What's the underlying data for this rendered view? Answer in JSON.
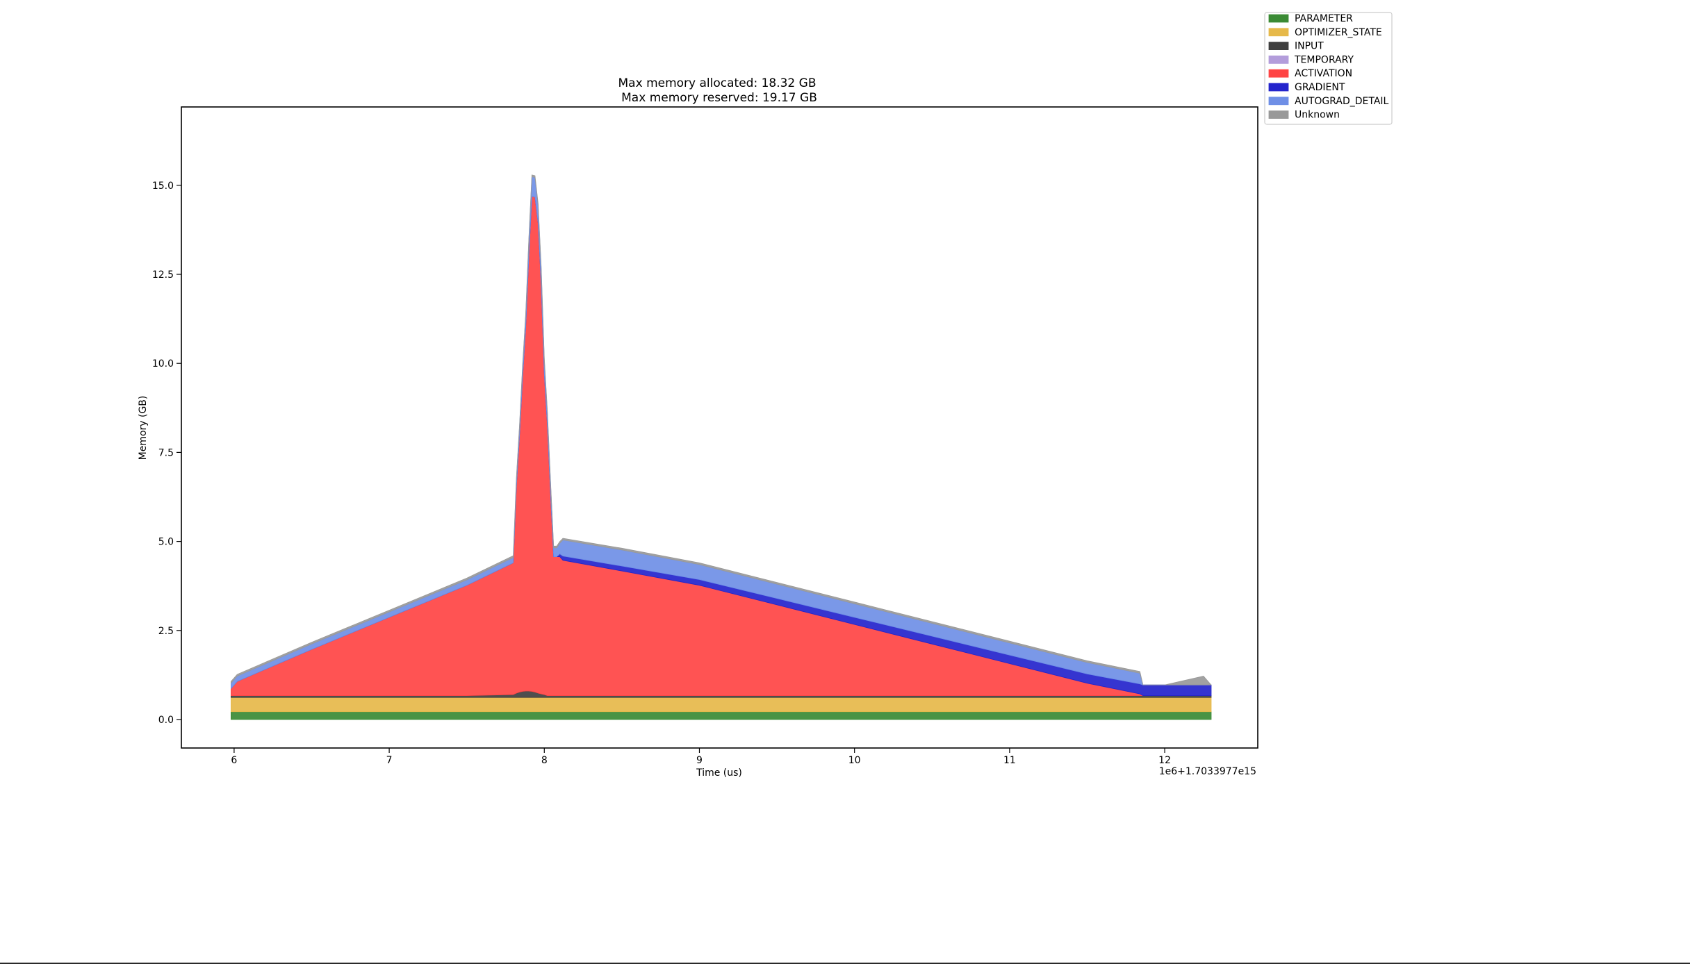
{
  "chart_data": {
    "type": "area",
    "stacked": true,
    "title_lines": [
      "Max memory allocated: 18.32 GB",
      "Max memory reserved: 19.17 GB"
    ],
    "xlabel": "Time (us)",
    "ylabel": "Memory (GB)",
    "x_offset_label": "1e6+1.7033977e15",
    "xlim": [
      5.66,
      12.6
    ],
    "ylim": [
      -0.8,
      17.2
    ],
    "xticks": [
      6,
      7,
      8,
      9,
      10,
      11,
      12
    ],
    "xtick_labels": [
      "6",
      "7",
      "8",
      "9",
      "10",
      "11",
      "12"
    ],
    "yticks": [
      0.0,
      2.5,
      5.0,
      7.5,
      10.0,
      12.5,
      15.0
    ],
    "ytick_labels": [
      "0.0",
      "2.5",
      "5.0",
      "7.5",
      "10.0",
      "12.5",
      "15.0"
    ],
    "grid": false,
    "legend_position": "outside top-right",
    "x": [
      5.98,
      6.02,
      6.5,
      7.0,
      7.5,
      7.8,
      7.82,
      7.84,
      7.86,
      7.88,
      7.9,
      7.92,
      7.94,
      7.96,
      7.98,
      8.0,
      8.02,
      8.04,
      8.06,
      8.08,
      8.1,
      8.12,
      8.5,
      9.0,
      9.5,
      10.0,
      10.5,
      11.0,
      11.5,
      11.84,
      11.86,
      12.0,
      12.2,
      12.25,
      12.3
    ],
    "series": [
      {
        "name": "PARAMETER",
        "color": "#3a8a34",
        "values": [
          0.22,
          0.22,
          0.22,
          0.22,
          0.22,
          0.22,
          0.22,
          0.22,
          0.22,
          0.22,
          0.22,
          0.22,
          0.22,
          0.22,
          0.22,
          0.22,
          0.22,
          0.22,
          0.22,
          0.22,
          0.22,
          0.22,
          0.22,
          0.22,
          0.22,
          0.22,
          0.22,
          0.22,
          0.22,
          0.22,
          0.22,
          0.22,
          0.22,
          0.22,
          0.22
        ]
      },
      {
        "name": "OPTIMIZER_STATE",
        "color": "#e6b94a",
        "values": [
          0.4,
          0.4,
          0.4,
          0.4,
          0.4,
          0.4,
          0.4,
          0.4,
          0.4,
          0.4,
          0.4,
          0.4,
          0.4,
          0.4,
          0.4,
          0.4,
          0.4,
          0.4,
          0.4,
          0.4,
          0.4,
          0.4,
          0.4,
          0.4,
          0.4,
          0.4,
          0.4,
          0.4,
          0.4,
          0.4,
          0.4,
          0.4,
          0.4,
          0.4,
          0.4
        ]
      },
      {
        "name": "INPUT",
        "color": "#3f3f3f",
        "values": [
          0.05,
          0.05,
          0.05,
          0.05,
          0.05,
          0.08,
          0.12,
          0.15,
          0.17,
          0.18,
          0.18,
          0.17,
          0.15,
          0.12,
          0.1,
          0.08,
          0.05,
          0.05,
          0.05,
          0.05,
          0.05,
          0.05,
          0.05,
          0.05,
          0.05,
          0.05,
          0.05,
          0.05,
          0.05,
          0.05,
          0.05,
          0.05,
          0.05,
          0.05,
          0.05
        ]
      },
      {
        "name": "TEMPORARY",
        "color": "#b39ddb",
        "values": [
          0,
          0,
          0,
          0,
          0,
          0,
          0,
          0,
          0,
          0,
          0,
          0,
          0,
          0,
          0,
          0,
          0,
          0,
          0,
          0,
          0,
          0,
          0,
          0,
          0,
          0,
          0,
          0,
          0,
          0,
          0,
          0,
          0,
          0,
          0
        ]
      },
      {
        "name": "ACTIVATION",
        "color": "#ff4444",
        "values": [
          0.2,
          0.4,
          1.3,
          2.2,
          3.1,
          3.7,
          5.8,
          7.2,
          8.8,
          10.2,
          12.2,
          13.9,
          13.9,
          13.2,
          11.5,
          9.0,
          7.6,
          5.7,
          3.9,
          3.9,
          3.9,
          3.8,
          3.5,
          3.1,
          2.55,
          2.0,
          1.45,
          0.9,
          0.35,
          0.05,
          0.0,
          0.0,
          0.0,
          0.0,
          0.0
        ]
      },
      {
        "name": "GRADIENT",
        "color": "#2424cc",
        "values": [
          0,
          0,
          0,
          0,
          0,
          0,
          0,
          0,
          0,
          0,
          0,
          0,
          0,
          0,
          0,
          0,
          0,
          0,
          0,
          0,
          0.08,
          0.12,
          0.14,
          0.16,
          0.18,
          0.2,
          0.22,
          0.24,
          0.26,
          0.28,
          0.3,
          0.3,
          0.3,
          0.3,
          0.3
        ]
      },
      {
        "name": "AUTOGRAD_DETAIL",
        "color": "#6f8fe6",
        "values": [
          0.15,
          0.15,
          0.15,
          0.15,
          0.15,
          0.15,
          0.2,
          0.25,
          0.3,
          0.35,
          0.45,
          0.55,
          0.55,
          0.5,
          0.45,
          0.4,
          0.35,
          0.3,
          0.25,
          0.25,
          0.3,
          0.45,
          0.45,
          0.42,
          0.4,
          0.38,
          0.36,
          0.34,
          0.32,
          0.3,
          0.0,
          0.0,
          0.0,
          0.0,
          0.0
        ]
      },
      {
        "name": "Unknown",
        "color": "#999999",
        "values": [
          0.05,
          0.05,
          0.05,
          0.05,
          0.05,
          0.05,
          0.05,
          0.05,
          0.05,
          0.05,
          0.05,
          0.05,
          0.05,
          0.05,
          0.05,
          0.05,
          0.05,
          0.05,
          0.05,
          0.05,
          0.05,
          0.05,
          0.05,
          0.05,
          0.05,
          0.05,
          0.05,
          0.05,
          0.05,
          0.05,
          0.0,
          0.0,
          0.2,
          0.25,
          0.0
        ]
      }
    ]
  }
}
